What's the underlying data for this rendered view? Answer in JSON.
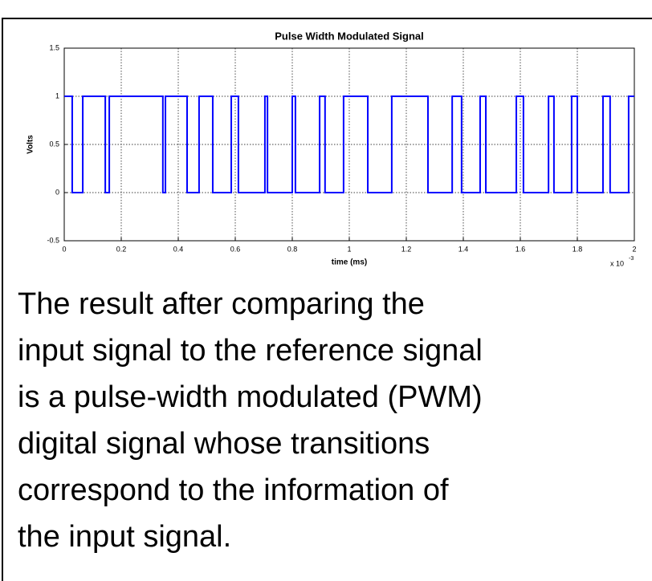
{
  "chart_data": {
    "type": "line",
    "title": "Pulse Width Modulated Signal",
    "x_label": "time (ms)",
    "y_label": "Volts",
    "x_multiplier": "x 10",
    "x_multiplier_exponent": "-3",
    "x": [
      0,
      2.8e-05,
      2.8e-05,
      6.5e-05,
      6.5e-05,
      0.000144,
      0.000144,
      0.000158,
      0.000158,
      0.000346,
      0.000346,
      0.000355,
      0.000355,
      0.000431,
      0.000431,
      0.000473,
      0.000473,
      0.000521,
      0.000521,
      0.000586,
      0.000586,
      0.000611,
      0.000611,
      0.000704,
      0.000704,
      0.000713,
      0.000713,
      0.0008,
      0.0008,
      0.000811,
      0.000811,
      0.000896,
      0.000896,
      0.000915,
      0.000915,
      0.00098,
      0.00098,
      0.001065,
      0.001065,
      0.001149,
      0.001149,
      0.001276,
      0.001276,
      0.001361,
      0.001361,
      0.001394,
      0.001394,
      0.001459,
      0.001459,
      0.001479,
      0.001479,
      0.001586,
      0.001586,
      0.001611,
      0.001611,
      0.001699,
      0.001699,
      0.001718,
      0.001718,
      0.00178,
      0.00178,
      0.0018,
      0.0018,
      0.00189,
      0.00189,
      0.001915,
      0.001915,
      0.00198,
      0.00198,
      0.002
    ],
    "series": [
      {
        "color": "#0000ff",
        "values": [
          1,
          1,
          0,
          0,
          1,
          1,
          0,
          0,
          1,
          1,
          0,
          0,
          1,
          1,
          0,
          0,
          1,
          1,
          0,
          0,
          1,
          1,
          0,
          0,
          1,
          1,
          0,
          0,
          1,
          1,
          0,
          0,
          1,
          1,
          0,
          0,
          1,
          1,
          0,
          0,
          1,
          1,
          0,
          0,
          1,
          1,
          0,
          0,
          1,
          1,
          0,
          0,
          1,
          1,
          0,
          0,
          1,
          1,
          0,
          0,
          1,
          1,
          0,
          0,
          1,
          1,
          0,
          0,
          1,
          1
        ]
      }
    ],
    "xlim": [
      0,
      0.002
    ],
    "xticks": [
      0,
      {
        "value": 0.0002,
        "label": "0.2"
      },
      {
        "value": 0.0004,
        "label": "0.4"
      },
      {
        "value": 0.0006,
        "label": "0.6"
      },
      {
        "value": 0.0008,
        "label": "0.8"
      },
      {
        "value": 0.001,
        "label": "1"
      },
      {
        "value": 0.0012,
        "label": "1.2"
      },
      {
        "value": 0.0014,
        "label": "1.4"
      },
      {
        "value": 0.0016,
        "label": "1.6"
      },
      {
        "value": 0.0018,
        "label": "1.8"
      },
      {
        "value": 0.002,
        "label": "2"
      }
    ],
    "ylim": [
      -0.5,
      1.5
    ],
    "yticks": [
      -0.5,
      0,
      0.5,
      1,
      1.5
    ],
    "grid": true
  },
  "paragraph_lines": [
    "The result after comparing the",
    "input signal to the reference signal",
    "is a pulse-width modulated (PWM)",
    "digital signal whose transitions",
    "correspond to the information of",
    "the input signal."
  ]
}
